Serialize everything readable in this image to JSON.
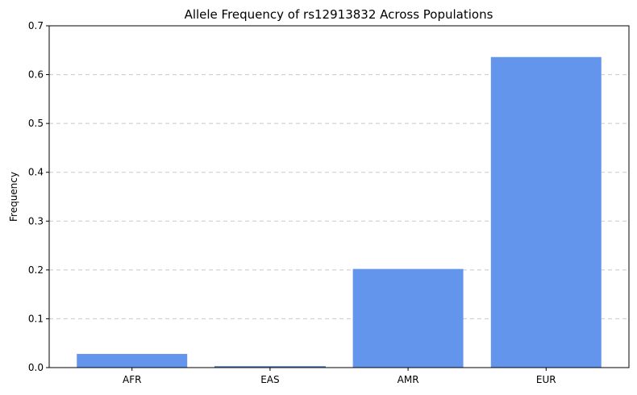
{
  "chart_data": {
    "type": "bar",
    "title": "Allele Frequency of rs12913832 Across Populations",
    "xlabel": "",
    "ylabel": "Frequency",
    "categories": [
      "AFR",
      "EAS",
      "AMR",
      "EUR"
    ],
    "values": [
      0.028,
      0.002,
      0.202,
      0.636
    ],
    "ylim": [
      0,
      0.7
    ],
    "yticks": [
      0.0,
      0.1,
      0.2,
      0.3,
      0.4,
      0.5,
      0.6,
      0.7
    ],
    "ytick_labels": [
      "0.0",
      "0.1",
      "0.2",
      "0.3",
      "0.4",
      "0.5",
      "0.6",
      "0.7"
    ],
    "grid": "y-dashed",
    "bar_color": "#6495ED",
    "edge_color": "#4a6fb5"
  }
}
